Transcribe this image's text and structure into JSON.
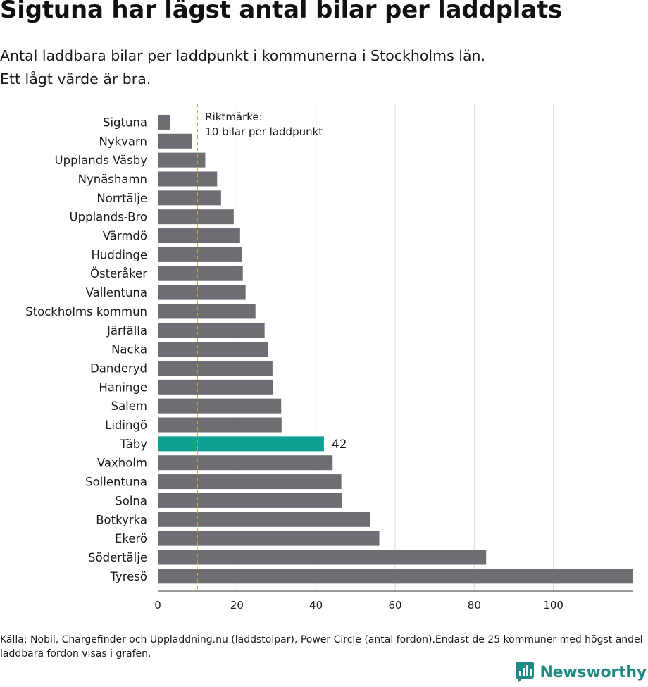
{
  "title": "Sigtuna har lägst antal bilar per laddplats",
  "subtitle_lines": [
    "Antal laddbara bilar per laddpunkt i kommunerna i Stockholms län.",
    "Ett lågt värde är bra."
  ],
  "footnote": "Källa: Nobil, Chargefinder och Uppladdning.nu (laddstolpar), Power Circle (antal fordon).Endast de 25 kommuner med högst andel laddbara fordon visas i grafen.",
  "brand": "Newsworthy",
  "colors": {
    "bar": "#6e6d73",
    "highlight": "#0e9f95",
    "reference": "#d4a043",
    "grid": "#d9d9d9",
    "brand": "#1f8a84"
  },
  "chart_data": {
    "type": "bar",
    "orientation": "horizontal",
    "categories": [
      "Sigtuna",
      "Nykvarn",
      "Upplands Väsby",
      "Nynäshamn",
      "Norrtälje",
      "Upplands-Bro",
      "Värmdö",
      "Huddinge",
      "Österåker",
      "Vallentuna",
      "Stockholms kommun",
      "Järfälla",
      "Nacka",
      "Danderyd",
      "Haninge",
      "Salem",
      "Lidingö",
      "Täby",
      "Vaxholm",
      "Sollentuna",
      "Solna",
      "Botkyrka",
      "Ekerö",
      "Södertälje",
      "Tyresö"
    ],
    "values": [
      3.2,
      8.7,
      12,
      15,
      16,
      19.2,
      20.8,
      21.2,
      21.5,
      22.2,
      24.7,
      27,
      27.9,
      29,
      29.2,
      31.2,
      31.3,
      42,
      44.2,
      46.4,
      46.6,
      53.6,
      56,
      83,
      120
    ],
    "highlight": "Täby",
    "highlight_label": "42",
    "reference_value": 10,
    "reference_label_lines": [
      "Riktmärke:",
      "10 bilar per laddpunkt"
    ],
    "xlim": [
      0,
      120
    ],
    "xticks": [
      0,
      20,
      40,
      60,
      80,
      100
    ],
    "grid": true,
    "legend": "none"
  }
}
